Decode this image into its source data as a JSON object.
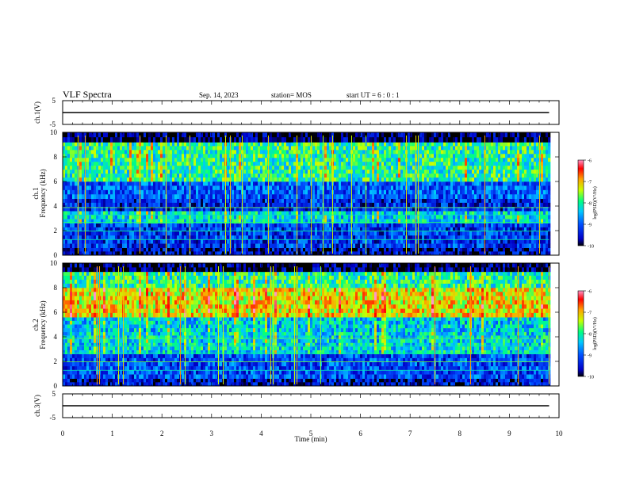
{
  "header": {
    "title": "VLF Spectra",
    "date": "Sep. 14, 2023",
    "station": "station= MOS",
    "start_ut": "start UT =  6 : 0 : 1"
  },
  "chart_data": [
    {
      "type": "line",
      "name": "ch1-voltage",
      "ylabel": "ch.1(V)",
      "ylim": [
        -5,
        5
      ],
      "y_ticks": [
        "5",
        "-5"
      ],
      "x": [
        0,
        9.8
      ],
      "values": [
        0,
        0
      ]
    },
    {
      "type": "heatmap",
      "name": "ch1-spectrogram",
      "ylabel_channel": "ch.1",
      "ylabel": "Frequency (kHz)",
      "ylim": [
        0,
        10
      ],
      "y_ticks": [
        "0",
        "2",
        "4",
        "6",
        "8",
        "10"
      ],
      "colorbar": {
        "label": "log(PSD)(V²/Hz)",
        "range": [
          -10,
          -6
        ],
        "ticks": [
          "-6",
          "-7",
          "-8",
          "-9",
          "-10"
        ]
      },
      "bands_khz": [
        {
          "from": 0,
          "to": 0.6,
          "level": -9.6
        },
        {
          "from": 0.6,
          "to": 2.6,
          "level": -9.2
        },
        {
          "from": 2.6,
          "to": 3.6,
          "level": -8.3
        },
        {
          "from": 3.6,
          "to": 4.6,
          "level": -9.3
        },
        {
          "from": 4.6,
          "to": 6.0,
          "level": -9.0
        },
        {
          "from": 6.0,
          "to": 9.2,
          "level": -8.0
        },
        {
          "from": 9.2,
          "to": 10,
          "level": -9.9
        }
      ]
    },
    {
      "type": "heatmap",
      "name": "ch2-spectrogram",
      "ylabel_channel": "ch.2",
      "ylabel": "Frequency (kHz)",
      "ylim": [
        0,
        10
      ],
      "y_ticks": [
        "0",
        "2",
        "4",
        "6",
        "8",
        "10"
      ],
      "colorbar": {
        "label": "log(PSD)(V²/Hz)",
        "range": [
          -10,
          -6
        ],
        "ticks": [
          "-6",
          "-7",
          "-8",
          "-9",
          "-10"
        ]
      },
      "bands_khz": [
        {
          "from": 0,
          "to": 0.6,
          "level": -9.5
        },
        {
          "from": 0.6,
          "to": 2.6,
          "level": -9.1
        },
        {
          "from": 2.6,
          "to": 4.4,
          "level": -8.3
        },
        {
          "from": 4.4,
          "to": 5.6,
          "level": -8.4
        },
        {
          "from": 5.6,
          "to": 8.0,
          "level": -7.2
        },
        {
          "from": 8.0,
          "to": 9.3,
          "level": -8.0
        },
        {
          "from": 9.3,
          "to": 10,
          "level": -9.9
        }
      ]
    },
    {
      "type": "line",
      "name": "ch3-voltage",
      "ylabel": "ch.3(V)",
      "ylim": [
        -5,
        5
      ],
      "y_ticks": [
        "5",
        "-5"
      ],
      "x": [
        0,
        9.8
      ],
      "values": [
        0,
        0
      ]
    }
  ],
  "x_axis": {
    "label": "Time (min)",
    "range": [
      0,
      10
    ],
    "ticks": [
      "0",
      "1",
      "2",
      "3",
      "4",
      "5",
      "6",
      "7",
      "8",
      "9",
      "10"
    ],
    "data_end": 9.8
  },
  "colors": [
    "#000000",
    "#0000c8",
    "#0050ff",
    "#00c8ff",
    "#00ff80",
    "#c8ff00",
    "#ffa000",
    "#ff0000",
    "#ff96c8"
  ]
}
